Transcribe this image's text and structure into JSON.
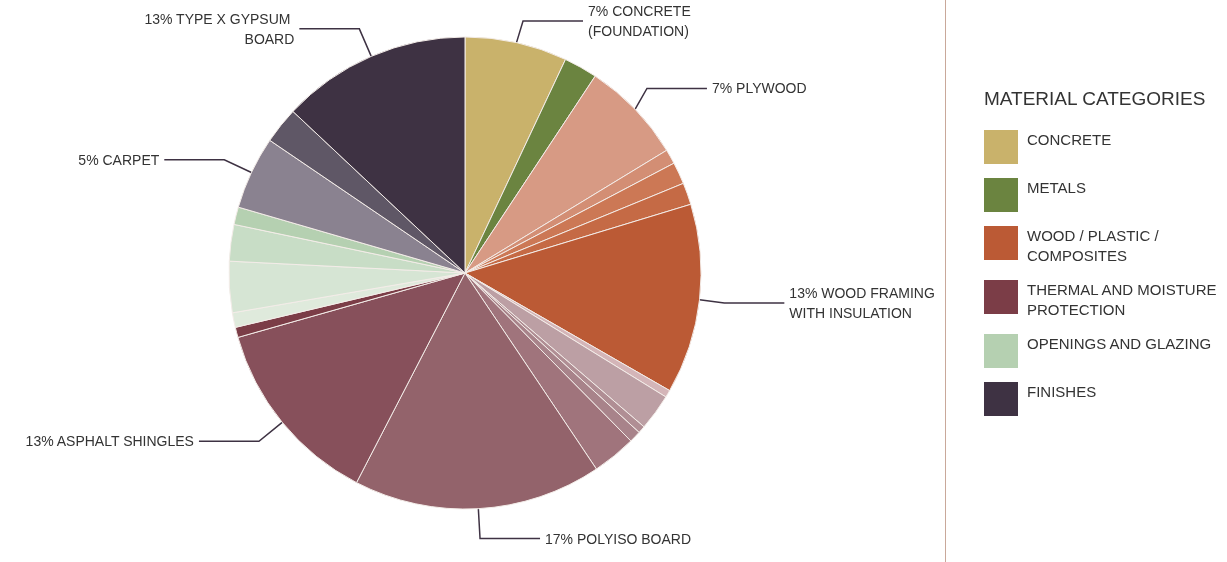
{
  "chart_data": [
    {
      "type": "pie",
      "categories": [
        "CONCRETE (FOUNDATION)",
        null,
        "PLYWOOD",
        null,
        null,
        null,
        "WOOD FRAMING WITH INSULATION",
        null,
        null,
        null,
        null,
        null,
        "POLYISO BOARD",
        "ASPHALT SHINGLES",
        null,
        null,
        null,
        null,
        null,
        "CARPET",
        null,
        "TYPE X GYPSUM BOARD"
      ],
      "values": [
        7,
        2.3,
        7,
        1,
        1.5,
        1.5,
        13,
        0.5,
        2.5,
        0.5,
        0.8,
        3,
        17,
        13,
        0.7,
        1,
        3.5,
        2.5,
        1.2,
        5,
        2.5,
        13
      ],
      "value_labels": [
        "7%",
        null,
        "7%",
        null,
        null,
        null,
        "13%",
        null,
        null,
        null,
        null,
        null,
        "17%",
        "13%",
        null,
        null,
        null,
        null,
        null,
        "5%",
        null,
        "13%"
      ],
      "colors": [
        "#c9b26b",
        "#6b8440",
        "#d79a84",
        "#d38e74",
        "#cc7855",
        "#c56a45",
        "#bb5a35",
        "#d4b5b8",
        "#bc9fa4",
        "#b08e94",
        "#a8838a",
        "#a0747c",
        "#93636b",
        "#87505b",
        "#7b3d47",
        "#dfeadc",
        "#d6e5d4",
        "#c8ddc6",
        "#b5d0b1",
        "#8a8290",
        "#5f5766",
        "#3e3243"
      ]
    },
    {
      "type": "other",
      "legend_title": "MATERIAL CATEGORIES",
      "categories": [
        "CONCRETE",
        "METALS",
        "WOOD / PLASTIC / COMPOSITES",
        "THERMAL AND MOISTURE PROTECTION",
        "OPENINGS AND GLAZING",
        "FINISHES"
      ],
      "colors": [
        "#c9b26b",
        "#6b8440",
        "#bb5a35",
        "#7b3d47",
        "#b5d0b1",
        "#3e3243"
      ]
    }
  ]
}
